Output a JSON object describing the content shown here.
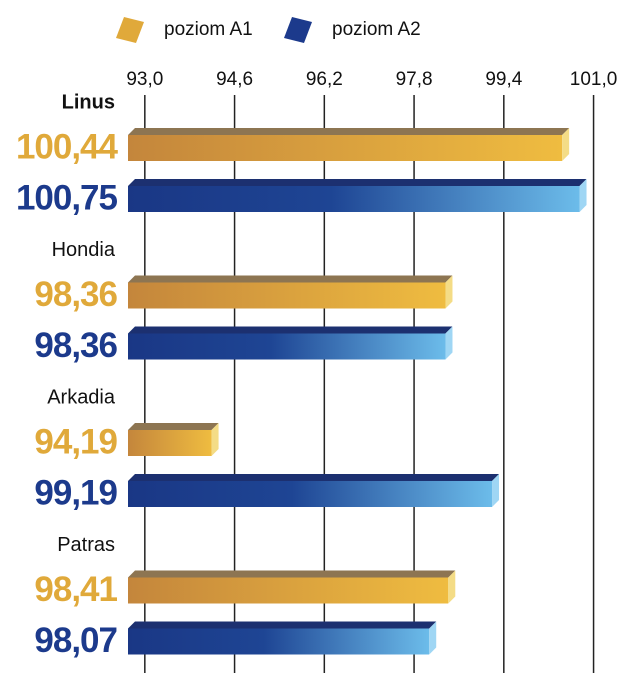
{
  "chart_data": {
    "type": "hbar",
    "categories": [
      "Linus",
      "Hondia",
      "Arkadia",
      "Patras"
    ],
    "series": [
      {
        "name": "poziom A1",
        "color": "#e0a93a",
        "values": [
          100.44,
          98.36,
          94.19,
          98.41
        ],
        "value_labels": [
          "100,44",
          "98,36",
          "94,19",
          "98,41"
        ]
      },
      {
        "name": "poziom A2",
        "color": "#1c3a8c",
        "values": [
          100.75,
          98.36,
          99.19,
          98.07
        ],
        "value_labels": [
          "100,75",
          "98,36",
          "99,19",
          "98,07"
        ]
      }
    ],
    "xlim": [
      92.7,
      101.4
    ],
    "xticks": [
      {
        "value": 93.0,
        "label": "93,0"
      },
      {
        "value": 94.6,
        "label": "94,6"
      },
      {
        "value": 96.2,
        "label": "96,2"
      },
      {
        "value": 97.8,
        "label": "97,8"
      },
      {
        "value": 99.4,
        "label": "99,4"
      },
      {
        "value": 101.0,
        "label": "101,0"
      }
    ],
    "grid": true
  }
}
